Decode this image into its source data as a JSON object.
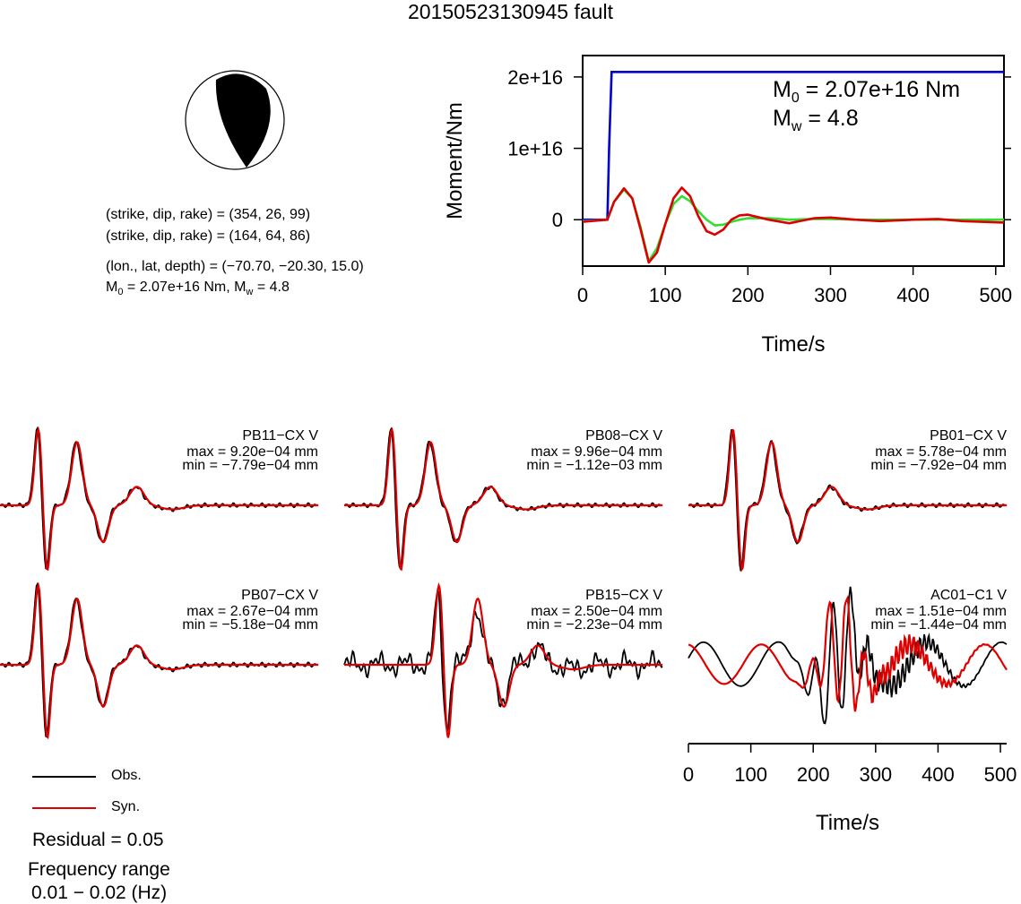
{
  "title": "20150523130945 fault",
  "mechanism": {
    "plane1": "(strike, dip, rake) = (354, 26, 99)",
    "plane2": "(strike, dip, rake) = (164, 64, 86)",
    "location": "(lon., lat, depth) = (−70.70, −20.30, 15.0)",
    "moment_line": {
      "m0_sym": "M",
      "m0_sub": "0",
      "m0_val": " = 2.07e+16 Nm, M",
      "mw_sub": "w",
      "mw_val": " = 4.8"
    }
  },
  "legend": {
    "obs": "Obs.",
    "syn": "Syn.",
    "residual": "Residual = 0.05",
    "freq_label": "Frequency range",
    "freq_value": "0.01 − 0.02 (Hz)"
  },
  "colors": {
    "obs": "#000000",
    "syn": "#dd0000",
    "moment": "#0000cc",
    "green": "#33dd33"
  },
  "chart_data": [
    {
      "type": "line",
      "name": "moment-rate",
      "xlabel": "Time/s",
      "ylabel": "Moment/Nm",
      "xlim": [
        0,
        510
      ],
      "ylim": [
        -6500000000000000.0,
        2.3e+16
      ],
      "xticks": [
        0,
        100,
        200,
        300,
        400,
        500
      ],
      "yticks": [
        0,
        1e+16,
        2e+16
      ],
      "ytick_labels": [
        "0",
        "1e+16",
        "2e+16"
      ],
      "annotation": {
        "m0_sym": "M",
        "m0_sub": "0",
        "m0_val": " = 2.07e+16 Nm",
        "mw_sym": "M",
        "mw_sub": "w",
        "mw_val": " = 4.8"
      },
      "series": [
        {
          "color": "#0000cc",
          "x": [
            0,
            30,
            32,
            35,
            510
          ],
          "y": [
            0,
            0,
            1e+16,
            2.07e+16,
            2.07e+16
          ]
        },
        {
          "color": "#33dd33",
          "x": [
            0,
            30,
            38,
            50,
            60,
            70,
            80,
            90,
            100,
            110,
            120,
            130,
            140,
            150,
            160,
            170,
            180,
            190,
            200,
            225,
            250,
            280,
            300,
            330,
            360,
            400,
            430,
            460,
            510
          ],
          "y": [
            -200000000000000.0,
            0,
            2500000000000000.0,
            4200000000000000.0,
            3000000000000000.0,
            -1000000000000000.0,
            -5800000000000000.0,
            -4000000000000000.0,
            -600000000000000.0,
            2200000000000000.0,
            3300000000000000.0,
            2600000000000000.0,
            1200000000000000.0,
            0,
            -800000000000000.0,
            -700000000000000.0,
            -300000000000000.0,
            0,
            200000000000000.0,
            200000000000000.0,
            0,
            100000000000000.0,
            100000000000000.0,
            0,
            0,
            0,
            0,
            0,
            0
          ]
        },
        {
          "color": "#dd0000",
          "x": [
            0,
            30,
            38,
            50,
            60,
            70,
            80,
            90,
            100,
            110,
            120,
            130,
            140,
            150,
            160,
            170,
            180,
            190,
            200,
            225,
            250,
            280,
            300,
            330,
            360,
            400,
            430,
            460,
            510
          ],
          "y": [
            -300000000000000.0,
            0,
            2500000000000000.0,
            4400000000000000.0,
            3000000000000000.0,
            -1300000000000000.0,
            -6000000000000000.0,
            -4600000000000000.0,
            -600000000000000.0,
            3000000000000000.0,
            4500000000000000.0,
            3300000000000000.0,
            500000000000000.0,
            -1600000000000000.0,
            -2100000000000000.0,
            -1400000000000000.0,
            0,
            600000000000000.0,
            700000000000000.0,
            0,
            -500000000000000.0,
            200000000000000.0,
            300000000000000.0,
            0,
            -200000000000000.0,
            0,
            100000000000000.0,
            -200000000000000.0,
            -400000000000000.0
          ]
        }
      ]
    },
    {
      "type": "line",
      "name": "waveforms",
      "xlabel": "Time/s",
      "xlim": [
        0,
        510
      ],
      "xticks": [
        0,
        100,
        200,
        300,
        400,
        500
      ],
      "stations": [
        {
          "name": "PB11−CX V",
          "max": "max = 9.20e−04 mm",
          "min": "min = −7.79e−04 mm",
          "kind": "clean",
          "t0": 60,
          "pmax": 9.2,
          "pmin": 7.8
        },
        {
          "name": "PB08−CX V",
          "max": "max = 9.96e−04 mm",
          "min": "min = −1.12e−03 mm",
          "kind": "clean",
          "t0": 75,
          "pmax": 9.96,
          "pmin": 11.2
        },
        {
          "name": "PB01−CX V",
          "max": "max = 5.78e−04 mm",
          "min": "min = −7.92e−04 mm",
          "kind": "clean",
          "t0": 70,
          "pmax": 5.78,
          "pmin": 7.92
        },
        {
          "name": "PB07−CX V",
          "max": "max = 2.67e−04 mm",
          "min": "min = −5.18e−04 mm",
          "kind": "clean",
          "t0": 60,
          "pmax": 2.67,
          "pmin": 5.18
        },
        {
          "name": "PB15−CX V",
          "max": "max = 2.50e−04 mm",
          "min": "min = −2.23e−04 mm",
          "kind": "noisy",
          "t0": 150,
          "pmax": 2.5,
          "pmin": 2.23
        },
        {
          "name": "AC01−C1 V",
          "max": "max = 1.51e−04 mm",
          "min": "min = −1.44e−04 mm",
          "kind": "chaotic",
          "t0": 240,
          "pmax": 1.51,
          "pmin": 1.44
        }
      ]
    }
  ]
}
